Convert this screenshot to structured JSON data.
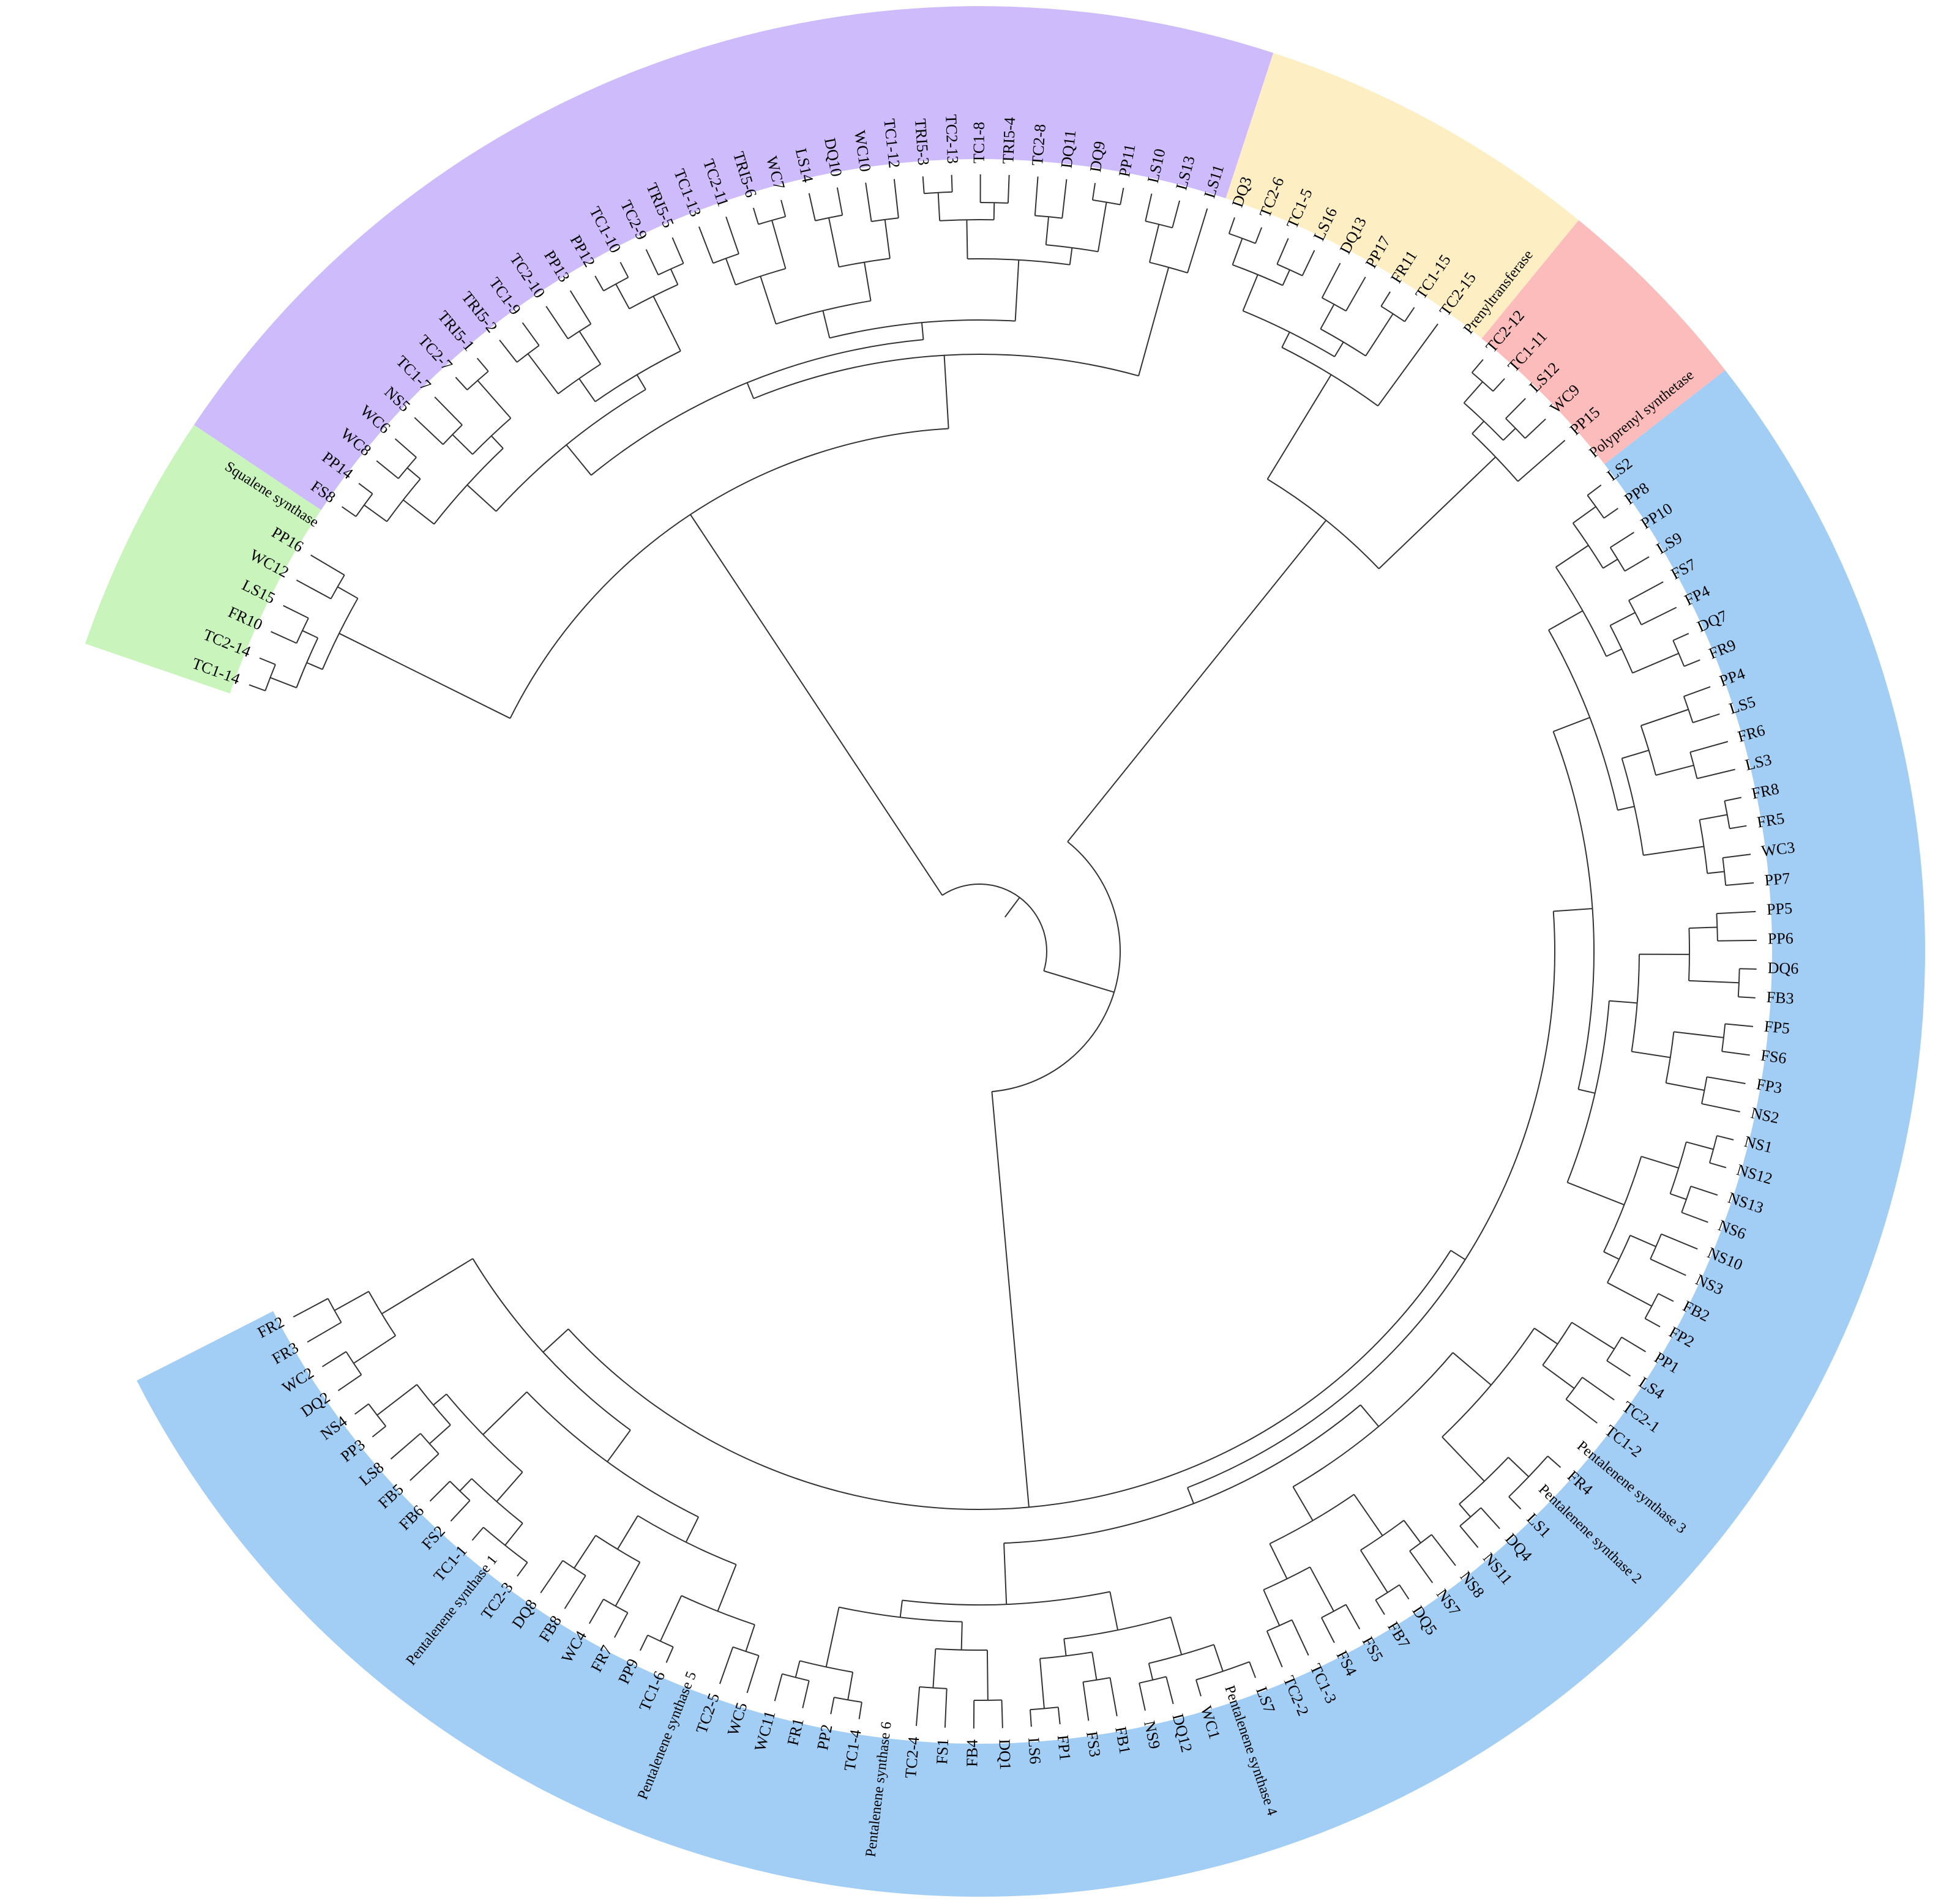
{
  "groups": [
    {
      "label": "Squalene synthase",
      "color": "#c9f5bd",
      "leaves": [
        "TC1-14",
        "TC2-14",
        "FR10",
        "LS15",
        "WC12",
        "PP16"
      ]
    },
    {
      "label": "",
      "color": "#cdbbfb",
      "leaves": [
        "FS8",
        "PP14",
        "WC8",
        "WC6",
        "NS5",
        "TC1-7",
        "TC2-7",
        "TRI5-1",
        "TRI5-2",
        "TC1-9",
        "TC2-10",
        "PP13",
        "PP12",
        "TC1-10",
        "TC2-9",
        "TRI5-5",
        "TC1-13",
        "TC2-11",
        "TRI5-6",
        "WC7",
        "LS14",
        "DQ10",
        "WC10",
        "TC1-12",
        "TRI5-3",
        "TC2-13",
        "TC1-8",
        "TRI5-4",
        "TC2-8",
        "DQ11",
        "DQ9",
        "PP11",
        "LS10",
        "LS13",
        "LS11"
      ]
    },
    {
      "label": "Prenyltransferase",
      "color": "#feeec4",
      "leaves": [
        "DQ3",
        "TC2-6",
        "TC1-5",
        "LS16",
        "DQ13",
        "PP17",
        "FR11",
        "TC1-15",
        "TC2-15"
      ]
    },
    {
      "label": "Polyprenyl synthetase",
      "color": "#fdbcbc",
      "leaves": [
        "TC2-12",
        "TC1-11",
        "LS12",
        "WC9",
        "PP15"
      ]
    },
    {
      "label": "",
      "color": "#a2cdf5",
      "leaves": [
        "LS2",
        "PP8",
        "PP10",
        "LS9",
        "FS7",
        "FP4",
        "DQ7",
        "FR9",
        "PP4",
        "LS5",
        "FR6",
        "LS3",
        "FR8",
        "FR5",
        "WC3",
        "PP7",
        "PP5",
        "PP6",
        "DQ6",
        "FB3",
        "FP5",
        "FS6",
        "FP3",
        "NS2",
        "NS1",
        "NS12",
        "NS13",
        "NS6",
        "NS10",
        "NS3",
        "FB2",
        "FP2",
        "PP1",
        "LS4",
        "TC2-1",
        "TC1-2",
        "FR4",
        "LS1",
        "DQ4",
        "NS11",
        "NS8",
        "NS7",
        "DQ5",
        "FB7",
        "FS5",
        "FS4",
        "TC1-3",
        "TC2-2",
        "LS7",
        "WC1",
        "DQ12",
        "NS9",
        "FB1",
        "FS3",
        "FP1",
        "LS6",
        "DQ1",
        "FB4",
        "FS1",
        "TC2-4",
        "TC1-4",
        "PP2",
        "FR1",
        "WC11",
        "WC5",
        "TC2-5",
        "TC1-6",
        "PP9",
        "FR7",
        "WC4",
        "FB8",
        "DQ8",
        "TC2-3",
        "TC1-1",
        "FS2",
        "FB6",
        "FB5",
        "LS8",
        "PP3",
        "NS4",
        "DQ2",
        "WC2",
        "FR3",
        "FR2"
      ]
    }
  ],
  "subgroup_labels": [
    {
      "label": "Pentalenene synthase 1",
      "after": "TC2-3"
    },
    {
      "label": "Pentalenene synthase 5",
      "after": "TC2-5"
    },
    {
      "label": "Pentalenene synthase 6",
      "after": "TC2-4"
    },
    {
      "label": "Pentalenene synthase 4",
      "after": "LS7"
    },
    {
      "label": "Pentalenene synthase 2",
      "after": "FR4"
    },
    {
      "label": "Pentalenene synthase 3",
      "after": "TC1-2"
    }
  ]
}
